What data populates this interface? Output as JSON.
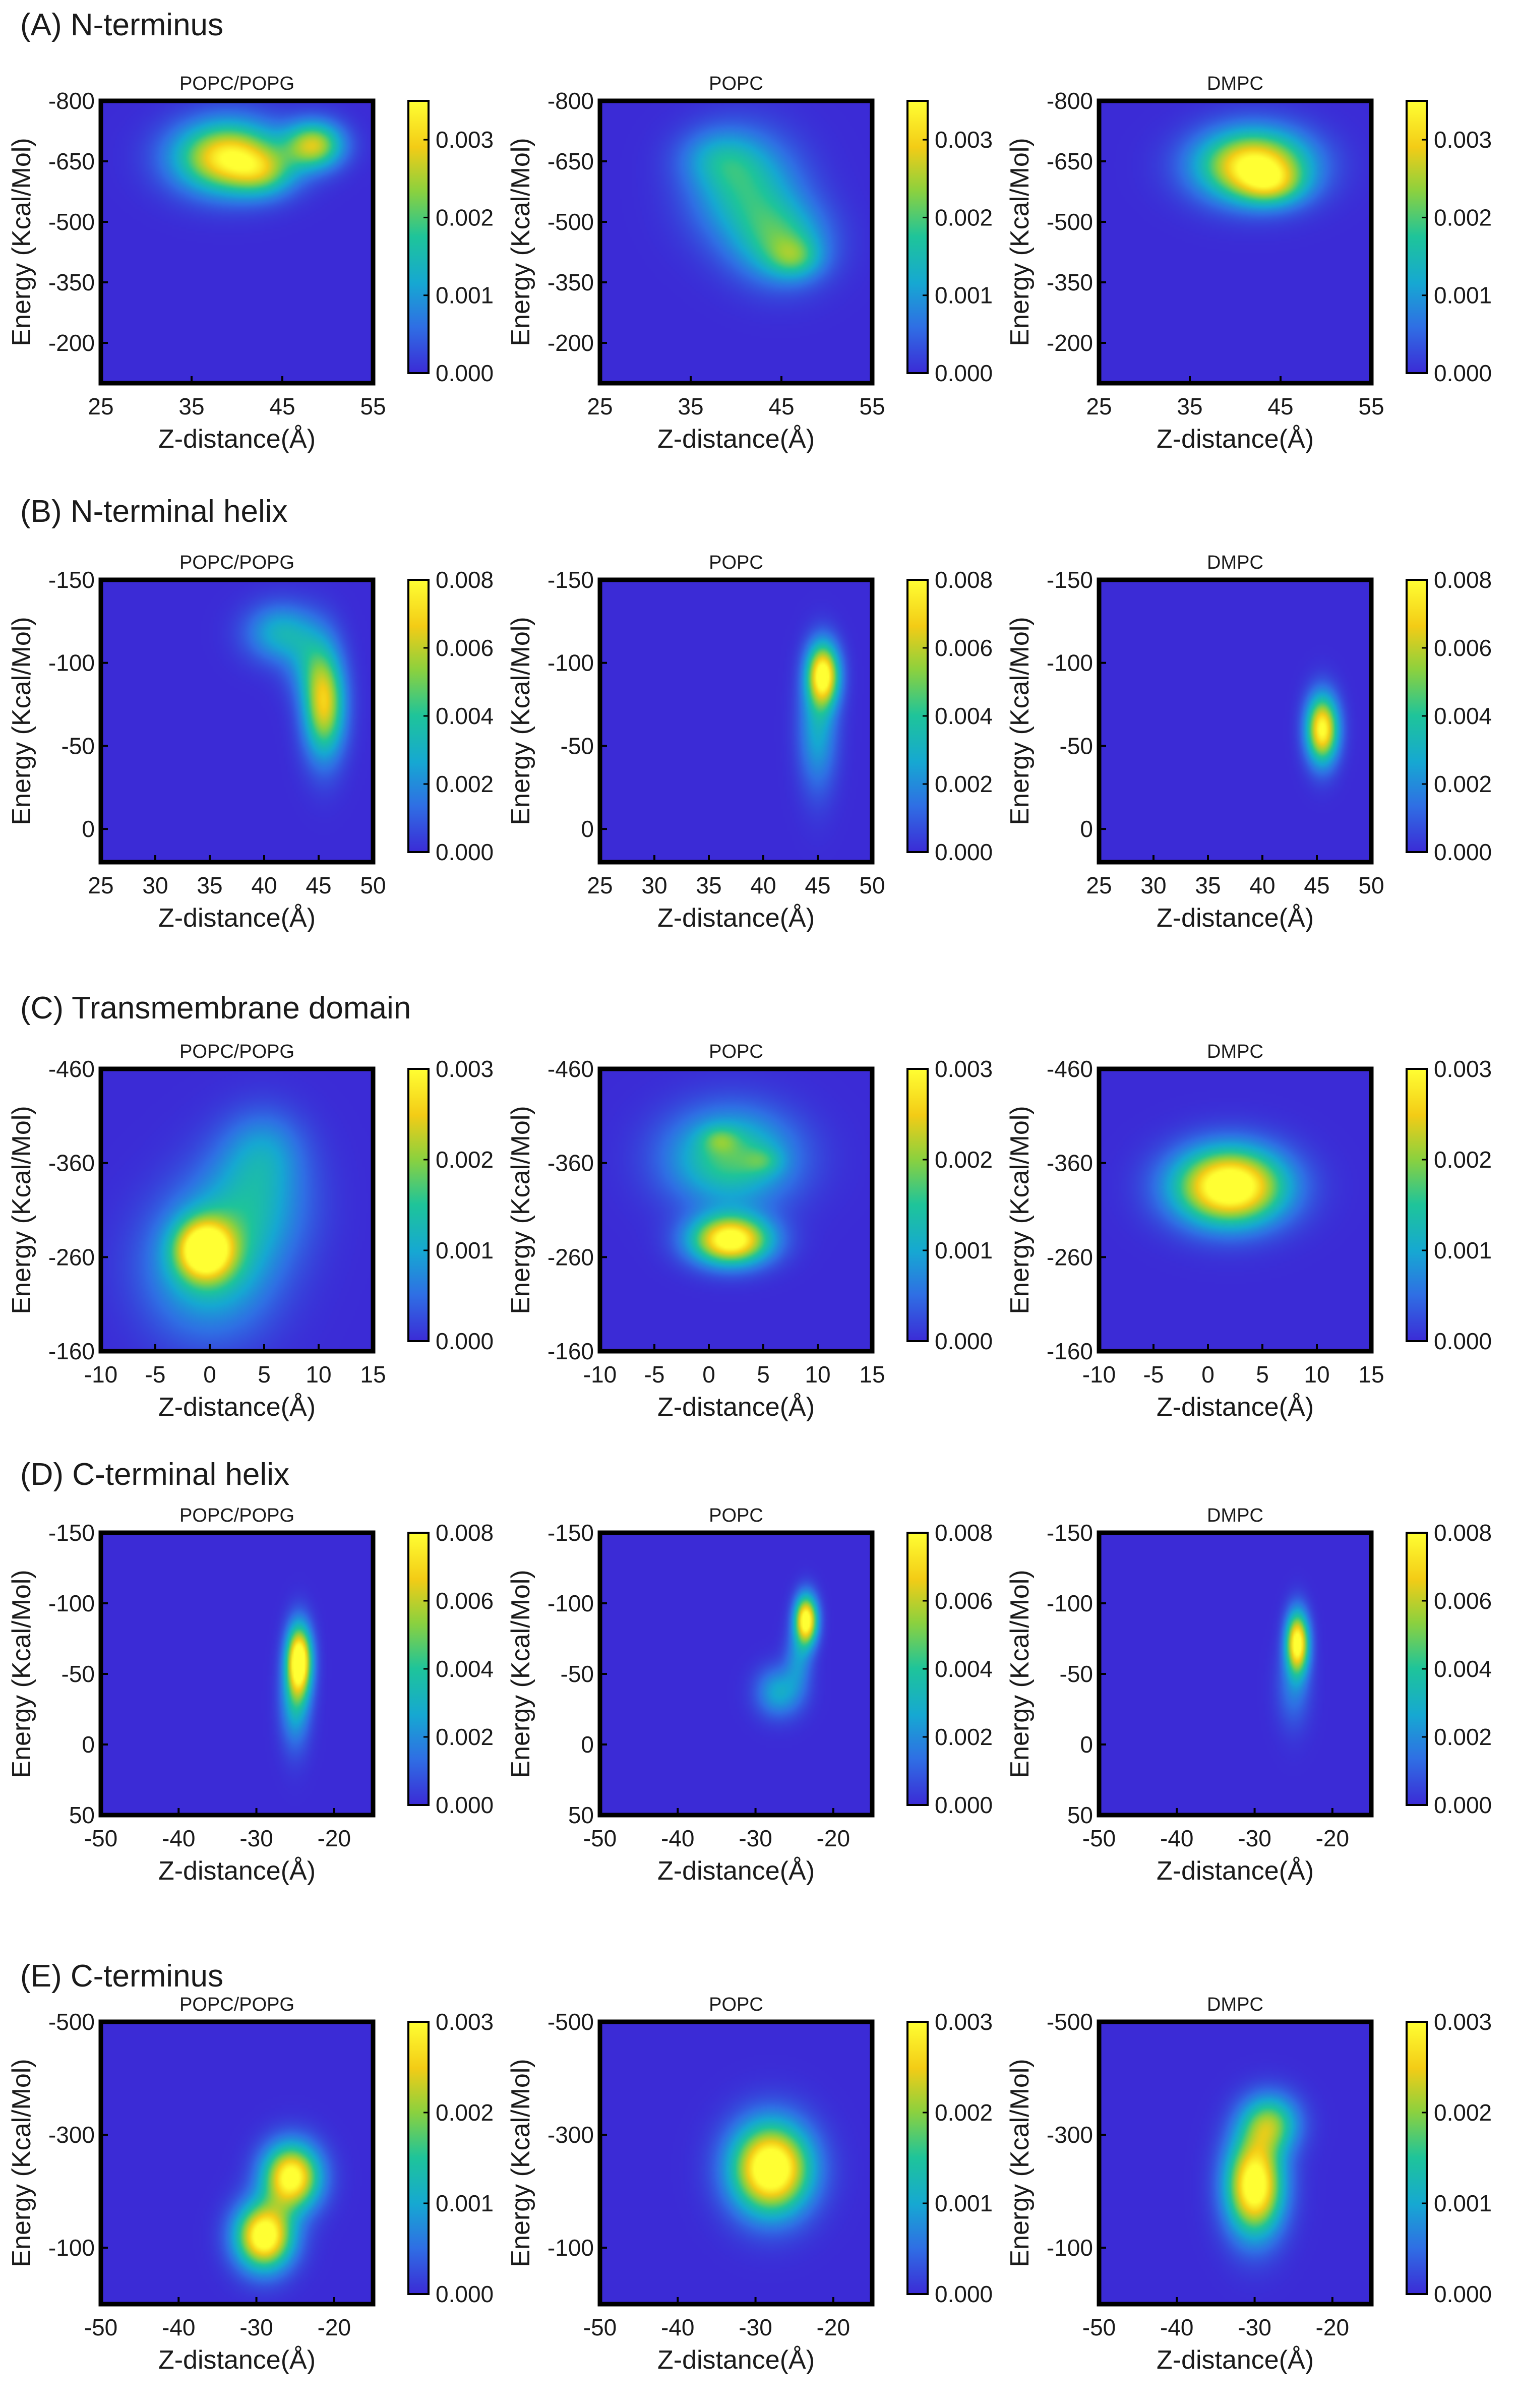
{
  "figure": {
    "colormap": [
      "#3b2bd6",
      "#2f6fe4",
      "#16a8d2",
      "#1ec49a",
      "#8cd13e",
      "#f3cc16",
      "#ffff33"
    ],
    "axis_color": "#000000",
    "text_color": "#1a1a1a"
  },
  "chart_data": [
    {
      "type": "heatmap",
      "row_label": "(A) N-terminus",
      "title": "POPC/POPG",
      "xlabel": "Z-distance(Å)",
      "ylabel": "Energy (Kcal/Mol)",
      "xlim": [
        25,
        55
      ],
      "xticks": [
        25,
        35,
        45,
        55
      ],
      "ylim": [
        -800,
        -100
      ],
      "yticks": [
        -800,
        -650,
        -500,
        -350,
        -200
      ],
      "clim": [
        0,
        0.0035
      ],
      "cticks": [
        0.0,
        0.001,
        0.002,
        0.003
      ],
      "blobs": [
        {
          "x": 39,
          "y": -660,
          "sx": 4.0,
          "sy": 60,
          "amp": 0.0034
        },
        {
          "x": 43,
          "y": -620,
          "sx": 2.5,
          "sy": 40,
          "amp": 0.0012
        },
        {
          "x": 48.5,
          "y": -690,
          "sx": 2.2,
          "sy": 40,
          "amp": 0.0026
        }
      ]
    },
    {
      "type": "heatmap",
      "row_label": "",
      "title": "POPC",
      "xlabel": "Z-distance(Å)",
      "ylabel": "Energy (Kcal/Mol)",
      "xlim": [
        25,
        55
      ],
      "xticks": [
        25,
        35,
        45,
        55
      ],
      "ylim": [
        -800,
        -100
      ],
      "yticks": [
        -800,
        -650,
        -500,
        -350,
        -200
      ],
      "clim": [
        0,
        0.0035
      ],
      "cticks": [
        0.0,
        0.001,
        0.002,
        0.003
      ],
      "blobs": [
        {
          "x": 41,
          "y": -580,
          "sx": 4.0,
          "sy": 90,
          "amp": 0.0016
        },
        {
          "x": 45,
          "y": -450,
          "sx": 3.5,
          "sy": 70,
          "amp": 0.0016
        },
        {
          "x": 46.5,
          "y": -410,
          "sx": 2.0,
          "sy": 35,
          "amp": 0.001
        },
        {
          "x": 38,
          "y": -660,
          "sx": 3.0,
          "sy": 50,
          "amp": 0.0008
        }
      ]
    },
    {
      "type": "heatmap",
      "row_label": "",
      "title": "DMPC",
      "xlabel": "Z-distance(Å)",
      "ylabel": "Energy (Kcal/Mol)",
      "xlim": [
        25,
        55
      ],
      "xticks": [
        25,
        35,
        45,
        55
      ],
      "ylim": [
        -800,
        -100
      ],
      "yticks": [
        -800,
        -650,
        -500,
        -350,
        -200
      ],
      "clim": [
        0,
        0.0035
      ],
      "cticks": [
        0.0,
        0.001,
        0.002,
        0.003
      ],
      "blobs": [
        {
          "x": 42,
          "y": -640,
          "sx": 4.2,
          "sy": 60,
          "amp": 0.0036
        },
        {
          "x": 44,
          "y": -590,
          "sx": 2.5,
          "sy": 35,
          "amp": 0.0012
        }
      ]
    },
    {
      "type": "heatmap",
      "row_label": "(B) N-terminal helix",
      "title": "POPC/POPG",
      "xlabel": "Z-distance(Å)",
      "ylabel": "Energy (Kcal/Mol)",
      "xlim": [
        25,
        50
      ],
      "xticks": [
        25,
        30,
        35,
        40,
        45,
        50
      ],
      "ylim": [
        -150,
        20
      ],
      "yticks": [
        -150,
        -100,
        -50,
        0
      ],
      "clim": [
        0,
        0.008
      ],
      "cticks": [
        0.0,
        0.002,
        0.004,
        0.006,
        0.008
      ],
      "blobs": [
        {
          "x": 45.5,
          "y": -75,
          "sx": 1.3,
          "sy": 22,
          "amp": 0.0066
        },
        {
          "x": 41.5,
          "y": -118,
          "sx": 2.2,
          "sy": 12,
          "amp": 0.003
        },
        {
          "x": 44,
          "y": -100,
          "sx": 1.5,
          "sy": 15,
          "amp": 0.0018
        }
      ]
    },
    {
      "type": "heatmap",
      "row_label": "",
      "title": "POPC",
      "xlabel": "Z-distance(Å)",
      "ylabel": "Energy (Kcal/Mol)",
      "xlim": [
        25,
        50
      ],
      "xticks": [
        25,
        30,
        35,
        40,
        45,
        50
      ],
      "ylim": [
        -150,
        20
      ],
      "yticks": [
        -150,
        -100,
        -50,
        0
      ],
      "clim": [
        0,
        0.008
      ],
      "cticks": [
        0.0,
        0.002,
        0.004,
        0.006,
        0.008
      ],
      "blobs": [
        {
          "x": 45.5,
          "y": -93,
          "sx": 1.0,
          "sy": 13,
          "amp": 0.008
        },
        {
          "x": 45,
          "y": -60,
          "sx": 1.2,
          "sy": 25,
          "amp": 0.0028
        }
      ]
    },
    {
      "type": "heatmap",
      "row_label": "",
      "title": "DMPC",
      "xlabel": "Z-distance(Å)",
      "ylabel": "Energy (Kcal/Mol)",
      "xlim": [
        25,
        50
      ],
      "xticks": [
        25,
        30,
        35,
        40,
        45,
        50
      ],
      "ylim": [
        -150,
        20
      ],
      "yticks": [
        -150,
        -100,
        -50,
        0
      ],
      "clim": [
        0,
        0.008
      ],
      "cticks": [
        0.0,
        0.002,
        0.004,
        0.006,
        0.008
      ],
      "blobs": [
        {
          "x": 45.5,
          "y": -60,
          "sx": 1.0,
          "sy": 14,
          "amp": 0.0082
        }
      ]
    },
    {
      "type": "heatmap",
      "row_label": "(C) Transmembrane domain",
      "title": "POPC/POPG",
      "xlabel": "Z-distance(Å)",
      "ylabel": "Energy (Kcal/Mol)",
      "xlim": [
        -10,
        15
      ],
      "xticks": [
        -10,
        -5,
        0,
        5,
        10,
        15
      ],
      "ylim": [
        -460,
        -160
      ],
      "yticks": [
        -460,
        -360,
        -260,
        -160
      ],
      "clim": [
        0,
        0.003
      ],
      "cticks": [
        0.0,
        0.001,
        0.002,
        0.003
      ],
      "blobs": [
        {
          "x": -0.5,
          "y": -268,
          "sx": 1.8,
          "sy": 22,
          "amp": 0.0028
        },
        {
          "x": 0,
          "y": -250,
          "sx": 4.0,
          "sy": 50,
          "amp": 0.0013
        },
        {
          "x": 4,
          "y": -320,
          "sx": 3.5,
          "sy": 45,
          "amp": 0.001
        },
        {
          "x": 5,
          "y": -375,
          "sx": 2.5,
          "sy": 30,
          "amp": 0.0006
        }
      ]
    },
    {
      "type": "heatmap",
      "row_label": "",
      "title": "POPC",
      "xlabel": "Z-distance(Å)",
      "ylabel": "Energy (Kcal/Mol)",
      "xlim": [
        -10,
        15
      ],
      "xticks": [
        -10,
        -5,
        0,
        5,
        10,
        15
      ],
      "ylim": [
        -460,
        -160
      ],
      "yticks": [
        -460,
        -360,
        -260,
        -160
      ],
      "clim": [
        0,
        0.003
      ],
      "cticks": [
        0.0,
        0.001,
        0.002,
        0.003
      ],
      "blobs": [
        {
          "x": 2,
          "y": -278,
          "sx": 2.5,
          "sy": 18,
          "amp": 0.0033
        },
        {
          "x": 2,
          "y": -365,
          "sx": 4.0,
          "sy": 35,
          "amp": 0.0017
        },
        {
          "x": 1,
          "y": -385,
          "sx": 1.2,
          "sy": 10,
          "amp": 0.0006
        },
        {
          "x": 5,
          "y": -362,
          "sx": 1.2,
          "sy": 10,
          "amp": 0.0005
        }
      ]
    },
    {
      "type": "heatmap",
      "row_label": "",
      "title": "DMPC",
      "xlabel": "Z-distance(Å)",
      "ylabel": "Energy (Kcal/Mol)",
      "xlim": [
        -10,
        15
      ],
      "xticks": [
        -10,
        -5,
        0,
        5,
        10,
        15
      ],
      "ylim": [
        -460,
        -160
      ],
      "yticks": [
        -460,
        -360,
        -260,
        -160
      ],
      "clim": [
        0,
        0.003
      ],
      "cticks": [
        0.0,
        0.001,
        0.002,
        0.003
      ],
      "blobs": [
        {
          "x": 2,
          "y": -335,
          "sx": 3.5,
          "sy": 28,
          "amp": 0.0036
        }
      ]
    },
    {
      "type": "heatmap",
      "row_label": "(D) C-terminal helix",
      "title": "POPC/POPG",
      "xlabel": "Z-distance(Å)",
      "ylabel": "Energy (Kcal/Mol)",
      "xlim": [
        -50,
        -15
      ],
      "xticks": [
        -50,
        -40,
        -30,
        -20
      ],
      "ylim": [
        -150,
        50
      ],
      "yticks": [
        -150,
        -100,
        -50,
        0,
        50
      ],
      "clim": [
        0,
        0.008
      ],
      "cticks": [
        0.0,
        0.002,
        0.004,
        0.006,
        0.008
      ],
      "blobs": [
        {
          "x": -24.5,
          "y": -60,
          "sx": 1.1,
          "sy": 17,
          "amp": 0.009
        },
        {
          "x": -25,
          "y": -30,
          "sx": 1.3,
          "sy": 22,
          "amp": 0.003
        }
      ]
    },
    {
      "type": "heatmap",
      "row_label": "",
      "title": "POPC",
      "xlabel": "Z-distance(Å)",
      "ylabel": "Energy (Kcal/Mol)",
      "xlim": [
        -50,
        -15
      ],
      "xticks": [
        -50,
        -40,
        -30,
        -20
      ],
      "ylim": [
        -150,
        50
      ],
      "yticks": [
        -150,
        -100,
        -50,
        0,
        50
      ],
      "clim": [
        0,
        0.008
      ],
      "cticks": [
        0.0,
        0.002,
        0.004,
        0.006,
        0.008
      ],
      "blobs": [
        {
          "x": -23.5,
          "y": -88,
          "sx": 1.0,
          "sy": 12,
          "amp": 0.0088
        },
        {
          "x": -27,
          "y": -37,
          "sx": 2.0,
          "sy": 12,
          "amp": 0.0028
        },
        {
          "x": -24.5,
          "y": -60,
          "sx": 1.2,
          "sy": 15,
          "amp": 0.002
        }
      ]
    },
    {
      "type": "heatmap",
      "row_label": "",
      "title": "DMPC",
      "xlabel": "Z-distance(Å)",
      "ylabel": "Energy (Kcal/Mol)",
      "xlim": [
        -50,
        -15
      ],
      "xticks": [
        -50,
        -40,
        -30,
        -20
      ],
      "ylim": [
        -150,
        50
      ],
      "yticks": [
        -150,
        -100,
        -50,
        0,
        50
      ],
      "clim": [
        0,
        0.008
      ],
      "cticks": [
        0.0,
        0.002,
        0.004,
        0.006,
        0.008
      ],
      "blobs": [
        {
          "x": -24.5,
          "y": -72,
          "sx": 1.0,
          "sy": 15,
          "amp": 0.0085
        },
        {
          "x": -25,
          "y": -40,
          "sx": 1.5,
          "sy": 20,
          "amp": 0.0015
        }
      ]
    },
    {
      "type": "heatmap",
      "row_label": "(E) C-terminus",
      "title": "POPC/POPG",
      "xlabel": "Z-distance(Å)",
      "ylabel": "Energy (Kcal/Mol)",
      "xlim": [
        -50,
        -15
      ],
      "xticks": [
        -50,
        -40,
        -30,
        -20
      ],
      "ylim": [
        -500,
        0
      ],
      "yticks": [
        -500,
        -300,
        -100
      ],
      "clim": [
        0,
        0.003
      ],
      "cticks": [
        0.0,
        0.001,
        0.002,
        0.003
      ],
      "blobs": [
        {
          "x": -29,
          "y": -120,
          "sx": 2.5,
          "sy": 40,
          "amp": 0.0034
        },
        {
          "x": -25.5,
          "y": -225,
          "sx": 2.5,
          "sy": 40,
          "amp": 0.0032
        }
      ]
    },
    {
      "type": "heatmap",
      "row_label": "",
      "title": "POPC",
      "xlabel": "Z-distance(Å)",
      "ylabel": "Energy (Kcal/Mol)",
      "xlim": [
        -50,
        -15
      ],
      "xticks": [
        -50,
        -40,
        -30,
        -20
      ],
      "ylim": [
        -500,
        0
      ],
      "yticks": [
        -500,
        -300,
        -100
      ],
      "clim": [
        0,
        0.003
      ],
      "cticks": [
        0.0,
        0.001,
        0.002,
        0.003
      ],
      "blobs": [
        {
          "x": -28,
          "y": -240,
          "sx": 3.5,
          "sy": 55,
          "amp": 0.0036
        }
      ]
    },
    {
      "type": "heatmap",
      "row_label": "",
      "title": "DMPC",
      "xlabel": "Z-distance(Å)",
      "ylabel": "Energy (Kcal/Mol)",
      "xlim": [
        -50,
        -15
      ],
      "xticks": [
        -50,
        -40,
        -30,
        -20
      ],
      "ylim": [
        -500,
        0
      ],
      "yticks": [
        -500,
        -300,
        -100
      ],
      "clim": [
        0,
        0.003
      ],
      "cticks": [
        0.0,
        0.001,
        0.002,
        0.003
      ],
      "blobs": [
        {
          "x": -30,
          "y": -210,
          "sx": 2.5,
          "sy": 60,
          "amp": 0.0034
        },
        {
          "x": -28,
          "y": -320,
          "sx": 2.5,
          "sy": 35,
          "amp": 0.0018
        }
      ]
    }
  ]
}
